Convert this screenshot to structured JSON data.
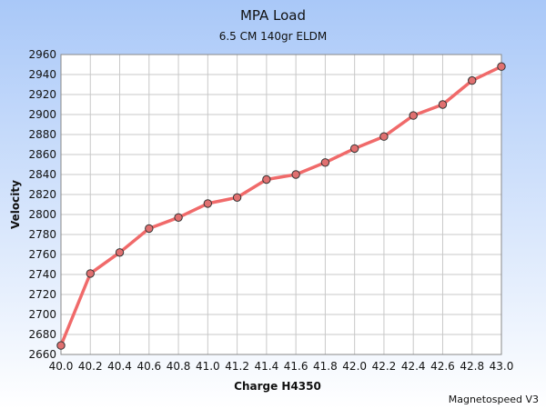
{
  "chart_data": {
    "type": "line",
    "title": "MPA Load",
    "subtitle": "6.5 CM 140gr ELDM",
    "xlabel": "Charge H4350",
    "ylabel": "Velocity",
    "footer": "Magnetospeed V3",
    "x": [
      "40.0",
      "40.2",
      "40.4",
      "40.6",
      "40.8",
      "41.0",
      "41.2",
      "41.4",
      "41.6",
      "41.8",
      "42.0",
      "42.2",
      "42.4",
      "42.6",
      "42.8",
      "43.0"
    ],
    "series": [
      {
        "values": [
          2669,
          2741,
          2762,
          2786,
          2797,
          2811,
          2817,
          2835,
          2840,
          2852,
          2866,
          2878,
          2899,
          2910,
          2934,
          2948
        ]
      }
    ],
    "yticks": [
      2660,
      2680,
      2700,
      2720,
      2740,
      2760,
      2780,
      2800,
      2820,
      2840,
      2860,
      2880,
      2900,
      2920,
      2940,
      2960
    ],
    "ylim": [
      2660,
      2960
    ],
    "grid": true,
    "legend": "none",
    "colors": {
      "line": "#f06a6a",
      "marker_fill": "#e07070",
      "marker_stroke": "#333333",
      "grid": "#c8c8c8",
      "plot_bg": "#ffffff"
    }
  }
}
